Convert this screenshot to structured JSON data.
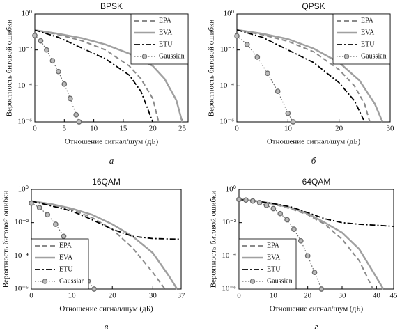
{
  "chart_data": [
    {
      "type": "line",
      "title": "BPSK",
      "caption": "а",
      "xlabel": "Отношение сигнал/шум (дБ)",
      "ylabel": "Вероятность битовой ошибки",
      "xlim": [
        0,
        26
      ],
      "xticks": [
        0,
        5,
        10,
        15,
        20,
        25
      ],
      "ylim": [
        1e-06,
        1
      ],
      "log_y": true,
      "grid": false,
      "legend": "upper right",
      "yticks": [
        {
          "value": 1,
          "label": "10⁰"
        },
        {
          "value": 0.01,
          "label": "10⁻²"
        },
        {
          "value": 0.0001,
          "label": "10⁻⁴"
        },
        {
          "value": 1e-06,
          "label": "10⁻⁶"
        }
      ],
      "series": [
        {
          "name": "EPA",
          "color": "#8a8a8a",
          "dash": "dashed",
          "x": [
            0,
            4,
            8,
            12,
            16,
            18,
            20,
            21
          ],
          "values": [
            0.126,
            0.071,
            0.032,
            0.01,
            0.0013,
            0.00025,
            2e-05,
            1e-06
          ]
        },
        {
          "name": "EVA",
          "color": "#a0a0a0",
          "dash": "solid",
          "x": [
            0,
            4,
            8,
            12,
            16,
            20,
            22,
            24,
            25
          ],
          "values": [
            0.126,
            0.079,
            0.045,
            0.02,
            0.0063,
            0.0013,
            0.00025,
            1.6e-05,
            1e-06
          ]
        },
        {
          "name": "ETU",
          "color": "#000000",
          "dash": "dashdot",
          "x": [
            0,
            4,
            8,
            12,
            16,
            18,
            20
          ],
          "values": [
            0.126,
            0.05,
            0.0126,
            0.0032,
            0.0004,
            5e-05,
            1e-06
          ]
        },
        {
          "name": "Gaussian",
          "color": "#6a6a6a",
          "dash": "dotted",
          "marker": "circle",
          "x": [
            0,
            1,
            2,
            3,
            4,
            5,
            6,
            7,
            7.5
          ],
          "values": [
            0.063,
            0.032,
            0.01,
            0.0025,
            0.00063,
            0.000126,
            2e-05,
            2.5e-06,
            1e-06
          ]
        }
      ]
    },
    {
      "type": "line",
      "title": "QPSK",
      "caption": "б",
      "xlabel": "Отношение сигнал/шум (дБ)",
      "ylabel": "Вероятность битовой ошибки",
      "xlim": [
        0,
        30
      ],
      "xticks": [
        0,
        10,
        20,
        30
      ],
      "ylim": [
        1e-06,
        1
      ],
      "log_y": true,
      "grid": false,
      "legend": "upper right",
      "yticks": [
        {
          "value": 1,
          "label": "10⁰"
        },
        {
          "value": 0.01,
          "label": "10⁻²"
        },
        {
          "value": 0.0001,
          "label": "10⁻⁴"
        },
        {
          "value": 1e-06,
          "label": "10⁻⁶"
        }
      ],
      "series": [
        {
          "name": "EPA",
          "color": "#8a8a8a",
          "dash": "dashed",
          "x": [
            0,
            5,
            10,
            15,
            20,
            23,
            25,
            26
          ],
          "values": [
            0.13,
            0.07,
            0.03,
            0.008,
            0.0008,
            0.0001,
            1e-05,
            1e-06
          ]
        },
        {
          "name": "EVA",
          "color": "#a0a0a0",
          "dash": "solid",
          "x": [
            0,
            5,
            10,
            15,
            20,
            24,
            27,
            28.5
          ],
          "values": [
            0.13,
            0.08,
            0.04,
            0.012,
            0.002,
            0.0002,
            1e-05,
            1e-06
          ]
        },
        {
          "name": "ETU",
          "color": "#000000",
          "dash": "dashdot",
          "x": [
            0,
            5,
            10,
            15,
            20,
            23,
            25
          ],
          "values": [
            0.13,
            0.05,
            0.01,
            0.002,
            0.00015,
            1.5e-05,
            1e-06
          ]
        },
        {
          "name": "Gaussian",
          "color": "#6a6a6a",
          "dash": "dotted",
          "marker": "circle",
          "x": [
            0,
            2,
            4,
            6,
            8,
            10,
            11
          ],
          "values": [
            0.06,
            0.02,
            0.004,
            0.0005,
            5e-05,
            3e-06,
            1e-06
          ]
        }
      ]
    },
    {
      "type": "line",
      "title": "16QAM",
      "caption": "в",
      "xlabel": "Отношение сигнал/шум (дБ)",
      "ylabel": "Вероятность битовой ошибки",
      "xlim": [
        0,
        37
      ],
      "xticks": [
        0,
        10,
        20,
        30,
        37
      ],
      "ylim": [
        1e-06,
        1
      ],
      "log_y": true,
      "grid": false,
      "legend": "lower left",
      "yticks": [
        {
          "value": 1,
          "label": "10⁰"
        },
        {
          "value": 0.01,
          "label": "10⁻²"
        },
        {
          "value": 0.0001,
          "label": "10⁻⁴"
        },
        {
          "value": 1e-06,
          "label": "10⁻⁶"
        }
      ],
      "series": [
        {
          "name": "EPA",
          "color": "#8a8a8a",
          "dash": "dashed",
          "x": [
            0,
            5,
            10,
            15,
            20,
            25,
            30,
            33
          ],
          "values": [
            0.2,
            0.12,
            0.06,
            0.02,
            0.004,
            0.0003,
            1e-05,
            1e-06
          ]
        },
        {
          "name": "EVA",
          "color": "#a0a0a0",
          "dash": "solid",
          "x": [
            0,
            5,
            10,
            15,
            20,
            25,
            30,
            34,
            36
          ],
          "values": [
            0.2,
            0.13,
            0.07,
            0.03,
            0.008,
            0.0015,
            0.00015,
            6e-06,
            1e-06
          ]
        },
        {
          "name": "ETU",
          "color": "#000000",
          "dash": "dashdot",
          "x": [
            0,
            5,
            10,
            15,
            20,
            25,
            30,
            37
          ],
          "values": [
            0.2,
            0.1,
            0.05,
            0.015,
            0.004,
            0.0015,
            0.0011,
            0.001
          ]
        },
        {
          "name": "Gaussian",
          "color": "#6a6a6a",
          "dash": "dotted",
          "marker": "circle",
          "x": [
            0,
            2,
            4,
            6,
            8,
            10,
            12,
            14,
            15.5
          ],
          "values": [
            0.15,
            0.08,
            0.03,
            0.008,
            0.0015,
            0.0002,
            2e-05,
            3e-06,
            1e-06
          ]
        }
      ]
    },
    {
      "type": "line",
      "title": "64QAM",
      "caption": "г",
      "xlabel": "Отношение сигнал/шум (дБ)",
      "ylabel": "Вероятность битовой ошибки",
      "xlim": [
        0,
        45
      ],
      "xticks": [
        0,
        10,
        20,
        30,
        40,
        45
      ],
      "ylim": [
        1e-06,
        1
      ],
      "log_y": true,
      "grid": false,
      "legend": "lower left",
      "yticks": [
        {
          "value": 1,
          "label": "10⁰"
        },
        {
          "value": 0.01,
          "label": "10⁻²"
        },
        {
          "value": 0.0001,
          "label": "10⁻⁴"
        },
        {
          "value": 1e-06,
          "label": "10⁻⁶"
        }
      ],
      "series": [
        {
          "name": "EPA",
          "color": "#8a8a8a",
          "dash": "dashed",
          "x": [
            0,
            5,
            10,
            15,
            20,
            25,
            30,
            35,
            39
          ],
          "values": [
            0.25,
            0.2,
            0.13,
            0.07,
            0.03,
            0.008,
            0.001,
            5e-05,
            1e-06
          ]
        },
        {
          "name": "EVA",
          "color": "#a0a0a0",
          "dash": "solid",
          "x": [
            0,
            5,
            10,
            15,
            20,
            25,
            30,
            35,
            40,
            42
          ],
          "values": [
            0.25,
            0.2,
            0.14,
            0.08,
            0.035,
            0.01,
            0.0025,
            0.00025,
            5e-06,
            1e-06
          ]
        },
        {
          "name": "ETU",
          "color": "#000000",
          "dash": "dashdot",
          "x": [
            0,
            5,
            10,
            15,
            20,
            25,
            30,
            35,
            40,
            45
          ],
          "values": [
            0.25,
            0.2,
            0.14,
            0.09,
            0.04,
            0.017,
            0.01,
            0.008,
            0.007,
            0.006
          ]
        },
        {
          "name": "Gaussian",
          "color": "#6a6a6a",
          "dash": "dotted",
          "marker": "circle",
          "x": [
            0,
            2,
            4,
            6,
            8,
            10,
            12,
            14,
            16,
            18,
            20,
            22,
            24
          ],
          "values": [
            0.25,
            0.23,
            0.2,
            0.16,
            0.11,
            0.07,
            0.035,
            0.015,
            0.004,
            0.0008,
            0.0001,
            1e-05,
            1e-06
          ]
        }
      ]
    }
  ]
}
